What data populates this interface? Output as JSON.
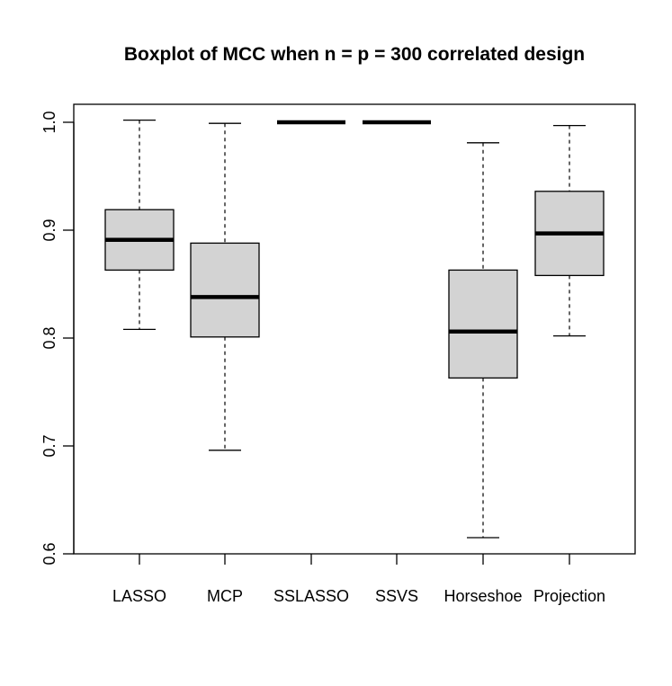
{
  "chart_data": {
    "type": "boxplot",
    "title": "Boxplot of MCC when n = p = 300 correlated design",
    "xlabel": "",
    "ylabel": "",
    "ylim": [
      0.6,
      1.0
    ],
    "yticks": [
      "0.6",
      "0.7",
      "0.8",
      "0.9",
      "1.0"
    ],
    "categories": [
      "LASSO",
      "MCP",
      "SSLASSO",
      "SSVS",
      "Horseshoe",
      "Projection"
    ],
    "boxes": [
      {
        "name": "LASSO",
        "whisker_low": 0.808,
        "q1": 0.863,
        "median": 0.891,
        "q3": 0.919,
        "whisker_high": 1.002
      },
      {
        "name": "MCP",
        "whisker_low": 0.696,
        "q1": 0.801,
        "median": 0.838,
        "q3": 0.888,
        "whisker_high": 0.999
      },
      {
        "name": "SSLASSO",
        "whisker_low": 1.0,
        "q1": 1.0,
        "median": 1.0,
        "q3": 1.0,
        "whisker_high": 1.0
      },
      {
        "name": "SSVS",
        "whisker_low": 1.0,
        "q1": 1.0,
        "median": 1.0,
        "q3": 1.0,
        "whisker_high": 1.0
      },
      {
        "name": "Horseshoe",
        "whisker_low": 0.615,
        "q1": 0.763,
        "median": 0.806,
        "q3": 0.863,
        "whisker_high": 0.981
      },
      {
        "name": "Projection",
        "whisker_low": 0.802,
        "q1": 0.858,
        "median": 0.897,
        "q3": 0.936,
        "whisker_high": 0.997
      }
    ],
    "colors": {
      "box_fill": "#d3d3d3",
      "stroke": "#000000"
    },
    "grid": false,
    "legend": "none"
  }
}
